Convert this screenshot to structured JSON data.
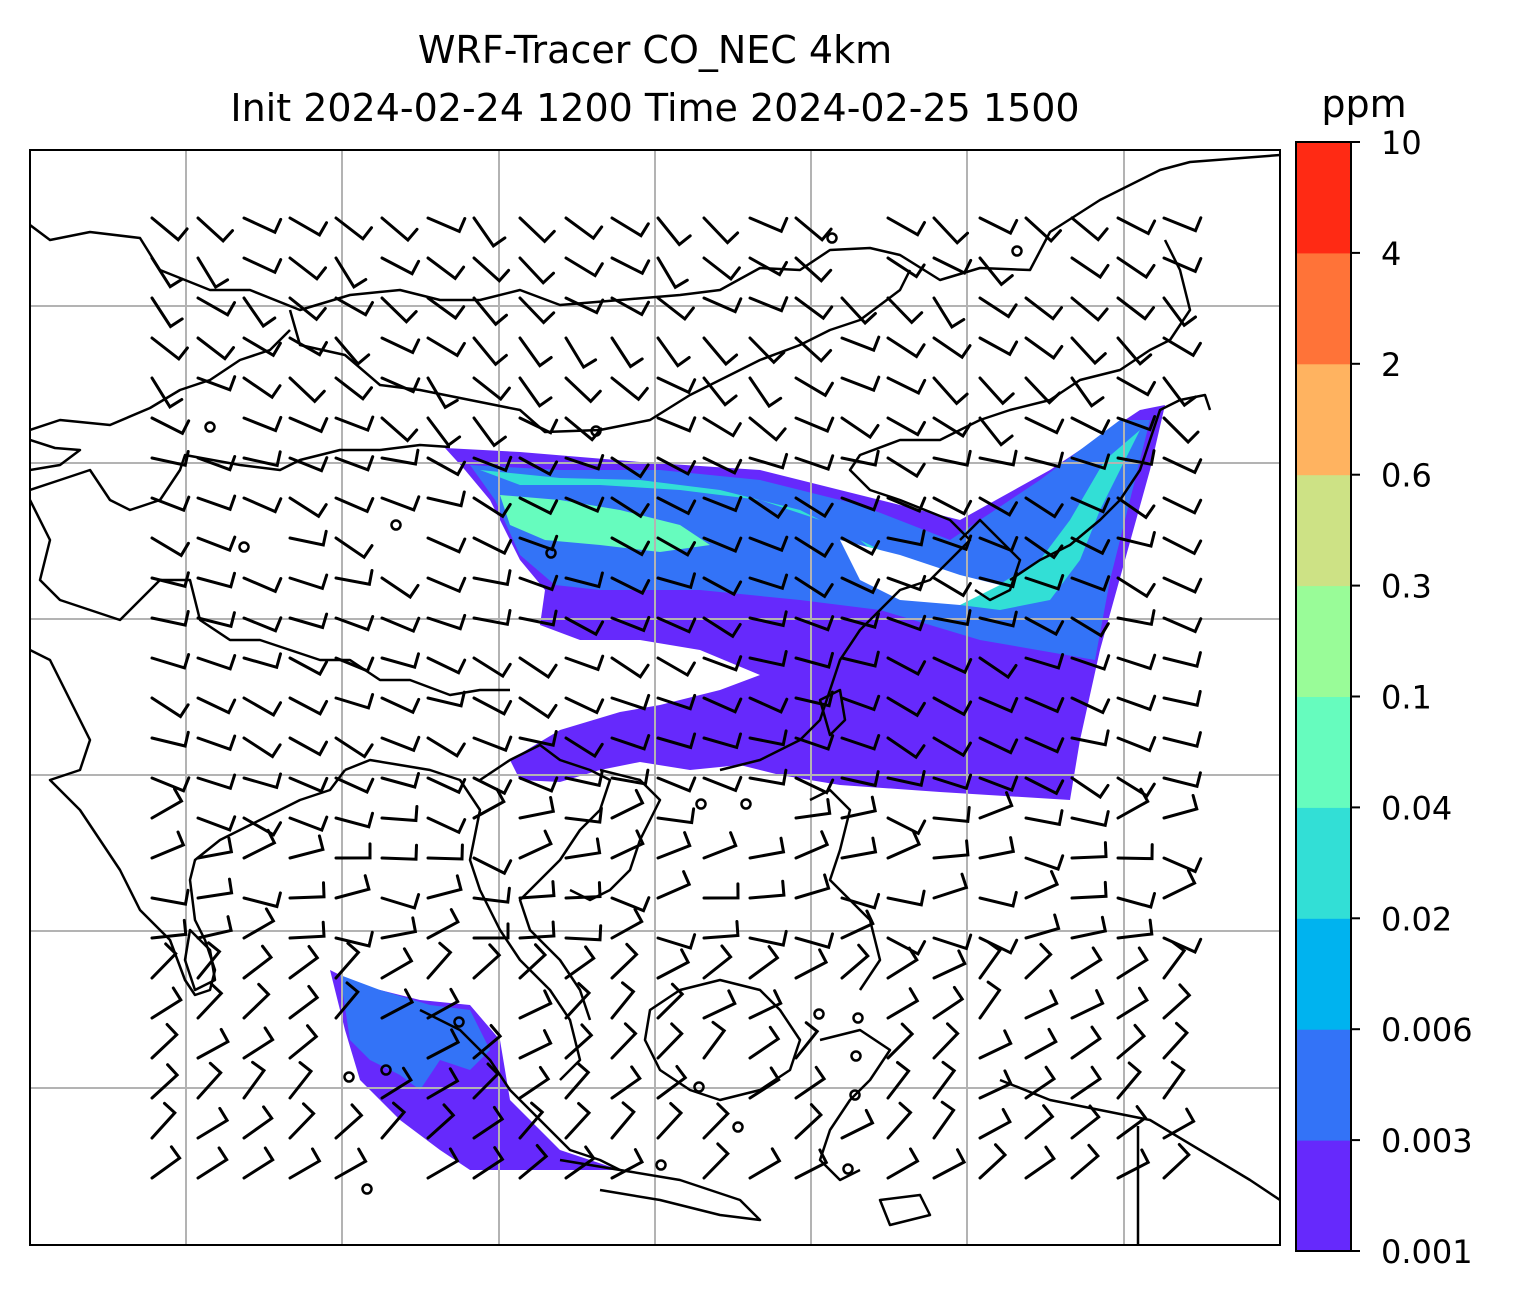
{
  "title": {
    "line1": "WRF-Tracer CO_NEC 4km",
    "line2": "Init 2024-02-24 1200 Time 2024-02-25 1500"
  },
  "colorbar": {
    "unit": "ppm",
    "levels": [
      "0.001",
      "0.003",
      "0.006",
      "0.02",
      "0.04",
      "0.1",
      "0.3",
      "0.6",
      "2",
      "4",
      "10"
    ],
    "colors": [
      "#6629fc",
      "#3373f7",
      "#00b3ef",
      "#32dfd6",
      "#66fcbe",
      "#99fc98",
      "#cde285",
      "#ffb360",
      "#ff7338",
      "#ff2a14"
    ]
  },
  "map": {
    "gridlines": true,
    "grid_color": "#b3b3b3",
    "coastline_color": "#000000",
    "wind_barb_color": "#000000"
  }
}
